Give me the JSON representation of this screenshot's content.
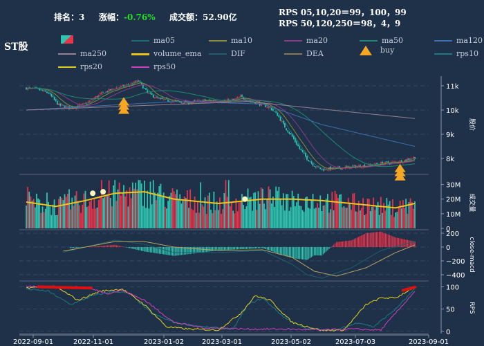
{
  "header": {
    "rank_label": "排名：",
    "rank_value": "3",
    "change_label": "涨幅：",
    "change_value": "-0.76%",
    "turnover_label": "成交额：",
    "turnover_value": "52.90亿",
    "rps_line1": "RPS 05,10,20＝99，100，99",
    "rps_line2": "RPS 50,120,250＝98，4，9"
  },
  "title": "ST股",
  "legend": [
    {
      "label": "ma05",
      "color": "#1b6f74"
    },
    {
      "label": "ma10",
      "color": "#8a8a3a"
    },
    {
      "label": "ma20",
      "color": "#8a3a8a"
    },
    {
      "label": "ma50",
      "color": "#1d8a6e"
    },
    {
      "label": "ma120",
      "color": "#3b6fb0"
    },
    {
      "label": "ma250",
      "color": "#9a8090"
    },
    {
      "label": "volume_ema",
      "color": "#f0c419"
    },
    {
      "label": "DIF",
      "color": "#1e5f6b"
    },
    {
      "label": "DEA",
      "color": "#8a7a4a"
    },
    {
      "label": "buy",
      "color": "#f5a623"
    },
    {
      "label": "rps10",
      "color": "#1a7a80"
    },
    {
      "label": "rps20",
      "color": "#e8d020"
    },
    {
      "label": "rps50",
      "color": "#d040c0"
    }
  ],
  "colors": {
    "up": "#e8334a",
    "down": "#2fc3b0",
    "background": "#1f3149",
    "axis": "#8899aa"
  },
  "chart_data": [
    {
      "type": "candlestick",
      "ylabel": "股价",
      "yticks": [
        "8k",
        "9k",
        "10k",
        "11k"
      ],
      "ylim": [
        7400,
        11400
      ],
      "x_dates": [
        "2022-09-01",
        "2022-11-01",
        "2023-01-02",
        "2023-03-01",
        "2023-05-02",
        "2023-07-03",
        "2023-09-01"
      ],
      "close_path": [
        [
          0,
          10900
        ],
        [
          8,
          10850
        ],
        [
          15,
          10700
        ],
        [
          22,
          10200
        ],
        [
          30,
          10100
        ],
        [
          40,
          10250
        ],
        [
          50,
          10650
        ],
        [
          60,
          10900
        ],
        [
          70,
          11050
        ],
        [
          76,
          11200
        ],
        [
          82,
          10700
        ],
        [
          90,
          10450
        ],
        [
          100,
          10350
        ],
        [
          110,
          10300
        ],
        [
          120,
          10400
        ],
        [
          130,
          10350
        ],
        [
          140,
          10400
        ],
        [
          145,
          10550
        ],
        [
          150,
          10400
        ],
        [
          158,
          10250
        ],
        [
          165,
          10100
        ],
        [
          170,
          9800
        ],
        [
          175,
          9300
        ],
        [
          180,
          8900
        ],
        [
          185,
          8400
        ],
        [
          190,
          8000
        ],
        [
          195,
          7700
        ],
        [
          200,
          7550
        ],
        [
          210,
          7600
        ],
        [
          220,
          7650
        ],
        [
          230,
          7700
        ],
        [
          240,
          7800
        ],
        [
          250,
          7850
        ],
        [
          255,
          7900
        ],
        [
          260,
          8000
        ],
        [
          263,
          8050
        ]
      ],
      "ma120_path": [
        [
          0,
          10000
        ],
        [
          100,
          10350
        ],
        [
          160,
          10250
        ],
        [
          200,
          9400
        ],
        [
          263,
          8500
        ]
      ],
      "ma250_path": [
        [
          0,
          10000
        ],
        [
          150,
          10350
        ],
        [
          263,
          9650
        ]
      ],
      "buy_signals": [
        [
          66,
          10700
        ],
        [
          253,
          7950
        ]
      ]
    },
    {
      "type": "bar",
      "ylabel": "成交量",
      "yticks": [
        "0",
        "10M",
        "20M",
        "30M"
      ],
      "ylim": [
        0,
        35
      ],
      "volume_ema_path": [
        [
          0,
          18
        ],
        [
          20,
          15
        ],
        [
          40,
          19
        ],
        [
          60,
          24
        ],
        [
          80,
          25
        ],
        [
          100,
          20
        ],
        [
          130,
          17
        ],
        [
          160,
          20
        ],
        [
          180,
          20
        ],
        [
          200,
          19
        ],
        [
          230,
          16
        ],
        [
          250,
          14
        ],
        [
          263,
          17
        ]
      ]
    },
    {
      "type": "bar",
      "ylabel": "close-macd",
      "yticks": [
        "−400",
        "−200",
        "0",
        "200"
      ],
      "ylim": [
        -470,
        230
      ],
      "dif_path": [
        [
          0,
          -200
        ],
        [
          30,
          -50
        ],
        [
          60,
          100
        ],
        [
          80,
          40
        ],
        [
          100,
          -80
        ],
        [
          130,
          -80
        ],
        [
          160,
          -50
        ],
        [
          180,
          -250
        ],
        [
          190,
          -400
        ],
        [
          200,
          -450
        ],
        [
          220,
          -300
        ],
        [
          240,
          -50
        ],
        [
          263,
          80
        ]
      ],
      "dea_path": [
        [
          0,
          -150
        ],
        [
          30,
          -40
        ],
        [
          60,
          80
        ],
        [
          80,
          80
        ],
        [
          100,
          0
        ],
        [
          130,
          -50
        ],
        [
          160,
          -40
        ],
        [
          180,
          -150
        ],
        [
          195,
          -350
        ],
        [
          210,
          -420
        ],
        [
          230,
          -300
        ],
        [
          250,
          -80
        ],
        [
          263,
          30
        ]
      ]
    },
    {
      "type": "line",
      "ylabel": "RPS",
      "yticks": [
        "0",
        "50",
        "100"
      ],
      "ylim": [
        -5,
        110
      ]
    }
  ]
}
